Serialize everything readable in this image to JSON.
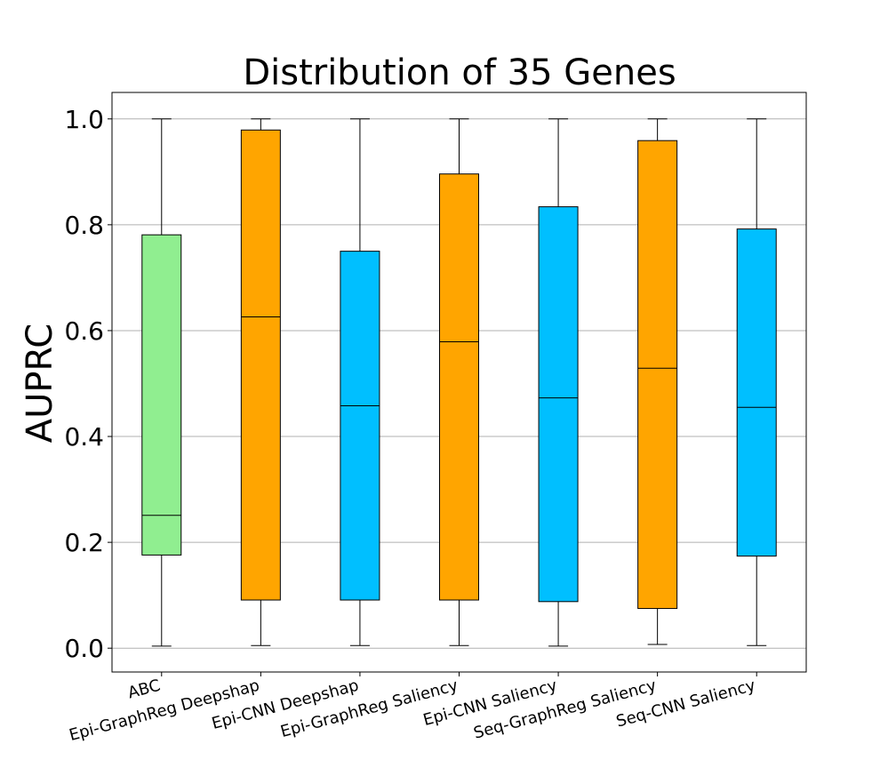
{
  "chart_data": {
    "type": "box",
    "title": "Distribution of 35 Genes",
    "xlabel": "",
    "ylabel": "AUPRC",
    "ylim": [
      -0.045,
      1.05
    ],
    "yticks": [
      "0.0",
      "0.2",
      "0.4",
      "0.6",
      "0.8",
      "1.0"
    ],
    "grid": "horizontal",
    "categories": [
      "ABC",
      "Epi-GraphReg Deepshap",
      "Epi-CNN Deepshap",
      "Epi-GraphReg Saliency",
      "Epi-CNN Saliency",
      "Seq-GraphReg Saliency",
      "Seq-CNN Saliency"
    ],
    "boxes": [
      {
        "whisker_low": 0.004,
        "q1": 0.176,
        "median": 0.251,
        "q3": 0.781,
        "whisker_high": 1.0,
        "color": "#90ee90"
      },
      {
        "whisker_low": 0.005,
        "q1": 0.091,
        "median": 0.626,
        "q3": 0.979,
        "whisker_high": 1.0,
        "color": "#ffa500"
      },
      {
        "whisker_low": 0.005,
        "q1": 0.091,
        "median": 0.458,
        "q3": 0.75,
        "whisker_high": 1.0,
        "color": "#00bfff"
      },
      {
        "whisker_low": 0.005,
        "q1": 0.091,
        "median": 0.579,
        "q3": 0.896,
        "whisker_high": 1.0,
        "color": "#ffa500"
      },
      {
        "whisker_low": 0.004,
        "q1": 0.088,
        "median": 0.473,
        "q3": 0.834,
        "whisker_high": 1.0,
        "color": "#00bfff"
      },
      {
        "whisker_low": 0.007,
        "q1": 0.075,
        "median": 0.529,
        "q3": 0.959,
        "whisker_high": 1.0,
        "color": "#ffa500"
      },
      {
        "whisker_low": 0.005,
        "q1": 0.174,
        "median": 0.455,
        "q3": 0.792,
        "whisker_high": 1.0,
        "color": "#00bfff"
      }
    ]
  }
}
